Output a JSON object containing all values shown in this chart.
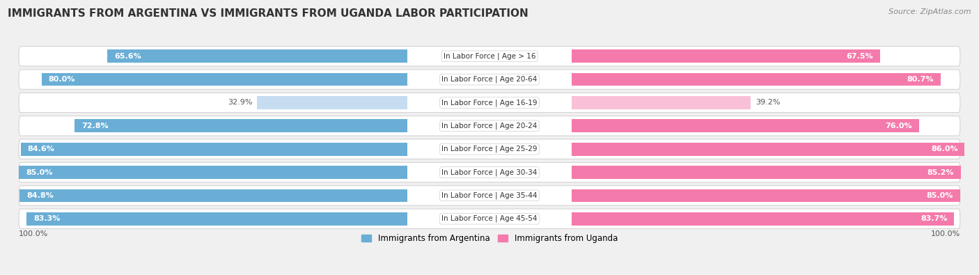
{
  "title": "IMMIGRANTS FROM ARGENTINA VS IMMIGRANTS FROM UGANDA LABOR PARTICIPATION",
  "source": "Source: ZipAtlas.com",
  "categories": [
    "In Labor Force | Age > 16",
    "In Labor Force | Age 20-64",
    "In Labor Force | Age 16-19",
    "In Labor Force | Age 20-24",
    "In Labor Force | Age 25-29",
    "In Labor Force | Age 30-34",
    "In Labor Force | Age 35-44",
    "In Labor Force | Age 45-54"
  ],
  "argentina_values": [
    65.6,
    80.0,
    32.9,
    72.8,
    84.6,
    85.0,
    84.8,
    83.3
  ],
  "uganda_values": [
    67.5,
    80.7,
    39.2,
    76.0,
    86.0,
    85.2,
    85.0,
    83.7
  ],
  "argentina_color": "#6aaed6",
  "argentina_light_color": "#c6dcf0",
  "uganda_color": "#f47aab",
  "uganda_light_color": "#f9c0d8",
  "bg_color": "#f0f0f0",
  "row_bg_color_light": "#f8f8f8",
  "row_bg_color_dark": "#eeeeee",
  "row_border_color": "#d0d0d0",
  "max_value": 100.0,
  "legend_argentina": "Immigrants from Argentina",
  "legend_uganda": "Immigrants from Uganda",
  "title_fontsize": 11,
  "source_fontsize": 8,
  "value_fontsize": 8,
  "category_fontsize": 7.5,
  "footer_fontsize": 8
}
